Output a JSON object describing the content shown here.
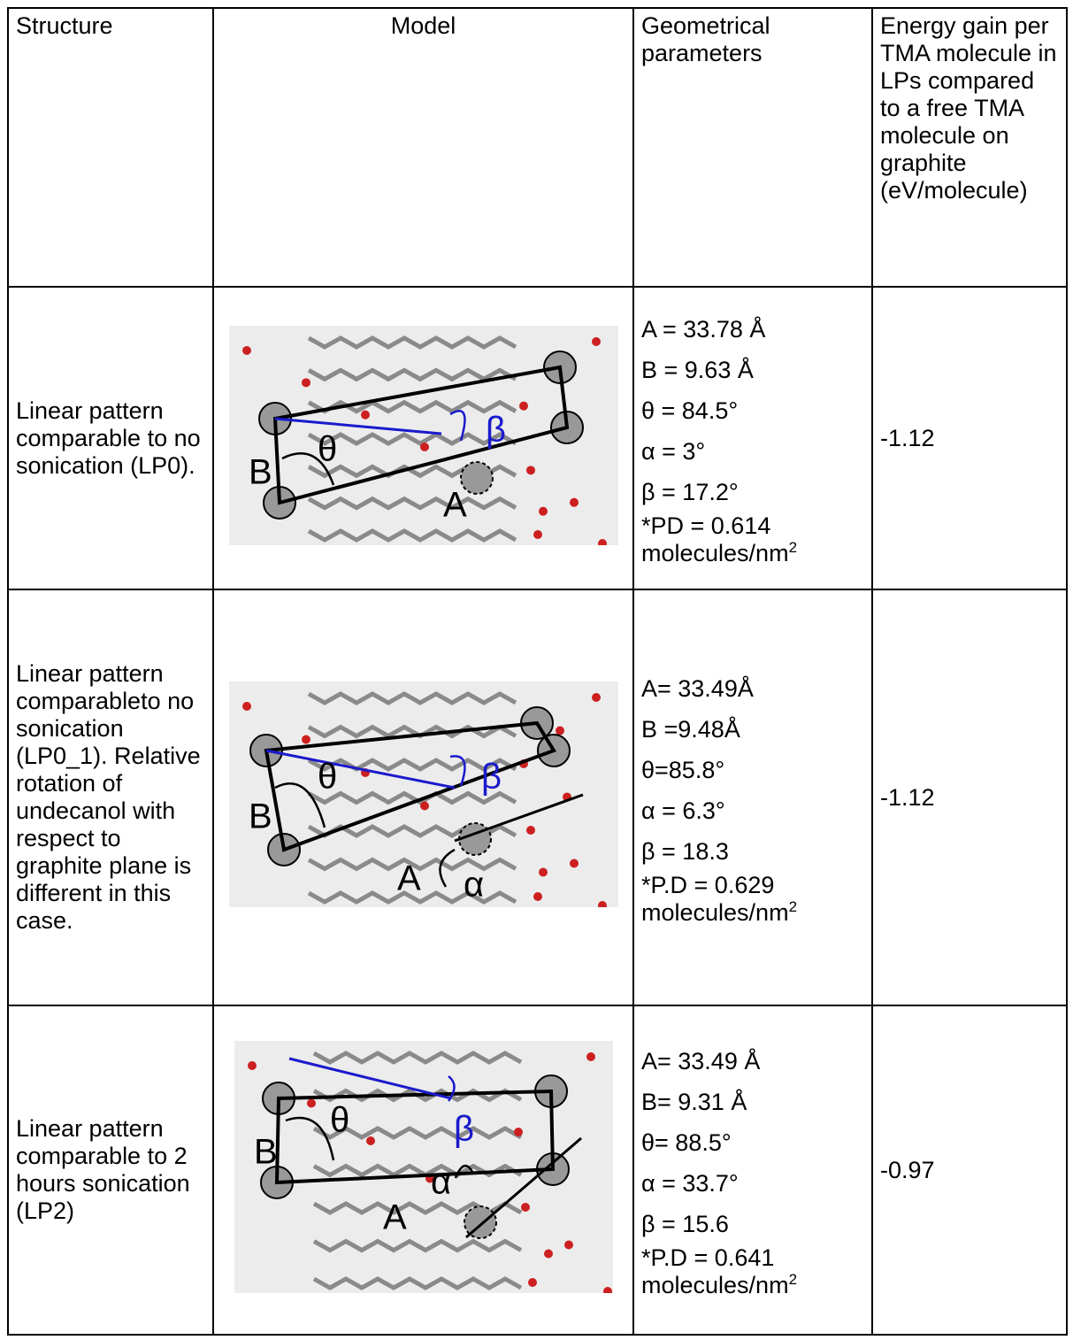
{
  "header": [
    "Structure",
    "Model",
    "Geometrical parameters",
    "Energy gain per TMA molecule in LPs compared to a free TMA molecule on graphite (eV/molecule)"
  ],
  "rows": [
    {
      "structure": "Linear pattern comparable to no sonication (LP0).",
      "model_labels": [
        "B",
        "θ",
        "β",
        "A"
      ],
      "parameters": [
        "A = 33.78 Å",
        "B = 9.63 Å",
        "θ = 84.5°",
        "α = 3°",
        "β = 17.2°"
      ],
      "density": {
        "text": "*PD = 0.614 molecules/nm",
        "sup": "2"
      },
      "energy": "-1.12"
    },
    {
      "structure": "Linear pattern comparableto no sonication (LP0_1). Relative rotation of undecanol with respect to graphite plane is different in this case.",
      "model_labels": [
        "B",
        "θ",
        "β",
        "A",
        "α"
      ],
      "parameters": [
        "A= 33.49Å",
        "B =9.48Å",
        "θ=85.8°",
        "α = 6.3°",
        "β = 18.3"
      ],
      "density": {
        "text": "*P.D = 0.629 molecules/nm",
        "sup": "2"
      },
      "energy": "-1.12"
    },
    {
      "structure": "Linear pattern comparable to 2 hours sonication (LP2)",
      "model_labels": [
        "B",
        "θ",
        "β",
        "A",
        "α"
      ],
      "parameters": [
        "A= 33.49 Å",
        "B= 9.31 Å",
        "θ= 88.5°",
        "α = 33.7°",
        "β = 15.6"
      ],
      "density": {
        "text": "*P.D = 0.641 molecules/nm",
        "sup": "2"
      },
      "energy": "-0.97"
    }
  ]
}
